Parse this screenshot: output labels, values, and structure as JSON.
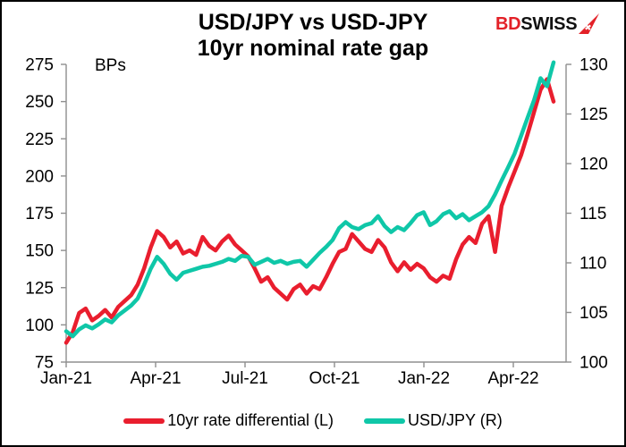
{
  "title": {
    "line1": "USD/JPY vs USD-JPY",
    "line2": "10yr nominal rate gap"
  },
  "logo": {
    "part1": "BD",
    "part2": "SWISS",
    "part1_color": "#e32128",
    "part2_color": "#111111",
    "arrow_color": "#e32128"
  },
  "colors": {
    "axis": "#8f8f8f",
    "text": "#000000",
    "background": "#ffffff",
    "border": "#000000"
  },
  "chart_data": {
    "type": "line",
    "title": "USD/JPY vs USD-JPY 10yr nominal rate gap",
    "grid": false,
    "legend_position": "bottom",
    "left_axis": {
      "note": "BPs",
      "ticks": [
        275,
        250,
        225,
        200,
        175,
        150,
        125,
        100,
        75
      ],
      "range": [
        75,
        275
      ]
    },
    "right_axis": {
      "ticks": [
        130,
        125,
        120,
        115,
        110,
        105,
        100
      ],
      "range": [
        100,
        130
      ]
    },
    "x_axis": {
      "tick_labels": [
        "Jan-21",
        "Apr-21",
        "Jul-21",
        "Oct-21",
        "Jan-22",
        "Apr-22"
      ],
      "tick_positions_months": [
        0,
        3,
        6,
        9,
        12,
        15
      ],
      "axis_end_month": 16.77,
      "series_end_month": 16.35
    },
    "series": [
      {
        "name": "10yr rate differential (L)",
        "axis": "left",
        "color": "#e91e2e",
        "values": [
          88,
          95,
          108,
          111,
          103,
          106,
          110,
          105,
          112,
          116,
          120,
          127,
          138,
          152,
          163,
          159,
          152,
          156,
          148,
          150,
          147,
          159,
          153,
          150,
          156,
          160,
          154,
          150,
          146,
          138,
          129,
          132,
          125,
          121,
          117,
          124,
          127,
          121,
          126,
          124,
          132,
          141,
          149,
          151,
          161,
          156,
          151,
          149,
          157,
          152,
          142,
          136,
          142,
          137,
          141,
          138,
          132,
          129,
          133,
          131,
          144,
          154,
          159,
          155,
          168,
          173,
          149,
          180,
          192,
          203,
          214,
          228,
          243,
          258,
          265,
          250
        ]
      },
      {
        "name": "USD/JPY (R)",
        "axis": "right",
        "color": "#0fc7a8",
        "values": [
          103.1,
          102.6,
          103.3,
          103.7,
          103.4,
          103.8,
          104.3,
          104.0,
          104.7,
          105.2,
          105.7,
          106.4,
          107.8,
          109.4,
          110.6,
          109.9,
          108.9,
          108.3,
          109.0,
          109.2,
          109.4,
          109.6,
          109.7,
          109.9,
          110.1,
          110.4,
          110.2,
          110.7,
          110.6,
          109.8,
          110.1,
          110.4,
          110.0,
          110.2,
          109.9,
          110.1,
          110.2,
          109.6,
          110.3,
          111.0,
          111.6,
          112.3,
          113.5,
          114.1,
          113.6,
          113.4,
          113.8,
          114.0,
          114.7,
          113.7,
          113.1,
          113.6,
          113.3,
          114.0,
          114.8,
          115.1,
          113.8,
          114.2,
          114.9,
          115.2,
          114.5,
          114.9,
          114.3,
          114.7,
          115.1,
          115.7,
          116.9,
          118.3,
          119.6,
          121.0,
          122.8,
          124.6,
          126.4,
          128.6,
          127.8,
          130.2
        ]
      }
    ]
  }
}
